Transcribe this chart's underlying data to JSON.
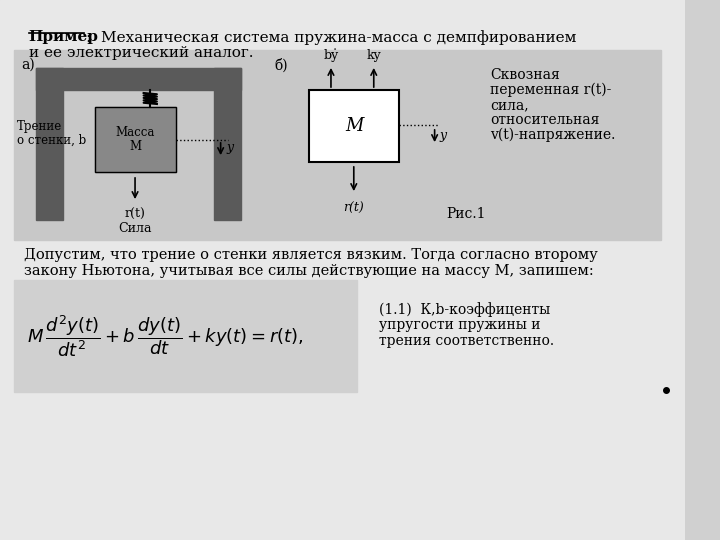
{
  "background_color": "#d0d0d0",
  "page_bg": "#e8e8e8",
  "title_underlined": "Пример",
  "title_text": ":  Механическая система пружина-масса с демпфированием",
  "title_text2": "и ее электрический аналог.",
  "side_text_line1": "Сквозная",
  "side_text_line2": "переменная r(t)-",
  "side_text_line3": "сила,",
  "side_text_line4": "относительная",
  "side_text_line5": "v(t)-напряжение.",
  "ris_label": "Рис.1",
  "body_text_line1": "Допустим, что трение о стенки является вязким. Тогда согласно второму",
  "body_text_line2": "закону Ньютона, учитывая все силы действующие на массу М, запишем:",
  "eq_label": "(1.1)  К,b-коэффиценты",
  "eq_label2": "упругости пружины и",
  "eq_label3": "трения соответственно.",
  "fig_a_label": "а)",
  "fig_b_label": "б)",
  "friction_text1": "Трение",
  "friction_text2": "о стенки, b",
  "mass_text1": "Масса",
  "mass_text2": "M",
  "force_label": "r(t)",
  "force_label2": "Сила",
  "y_label_fig": "y",
  "M_label": "M",
  "by_label": "bẏ",
  "ky_label": "ky",
  "rt_label": "r(t)",
  "y2_label": "y",
  "eq_str": "$M\\,\\dfrac{d^2y(t)}{dt^2} + b\\,\\dfrac{dy(t)}{dt} + ky(t) = r(t),$"
}
